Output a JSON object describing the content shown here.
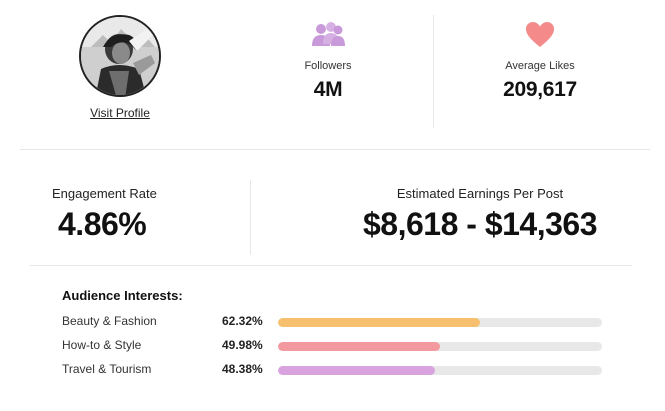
{
  "profile": {
    "visit_label": "Visit Profile"
  },
  "stats": {
    "followers": {
      "label": "Followers",
      "value": "4M",
      "icon": "people-icon",
      "icon_color": "#c99ad9"
    },
    "average_likes": {
      "label": "Average Likes",
      "value": "209,617",
      "icon": "heart-icon",
      "icon_color": "#f48a8a"
    }
  },
  "metrics": {
    "engagement": {
      "label": "Engagement Rate",
      "value": "4.86%"
    },
    "earnings": {
      "label": "Estimated Earnings Per Post",
      "value": "$8,618 - $14,363"
    }
  },
  "audience": {
    "title": "Audience Interests:",
    "items": [
      {
        "name": "Beauty & Fashion",
        "pct_label": "62.32%",
        "pct": 62.32,
        "color": "#f7c06e"
      },
      {
        "name": "How-to & Style",
        "pct_label": "49.98%",
        "pct": 49.98,
        "color": "#f29a9f"
      },
      {
        "name": "Travel & Tourism",
        "pct_label": "48.38%",
        "pct": 48.38,
        "color": "#d9a3df"
      }
    ]
  }
}
